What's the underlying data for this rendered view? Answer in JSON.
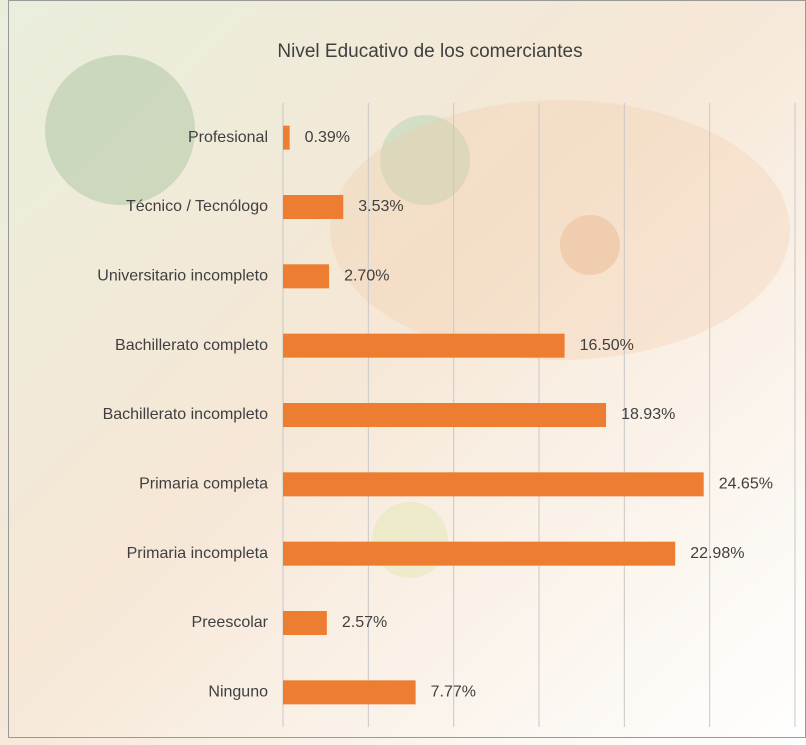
{
  "chart_data": {
    "type": "bar",
    "orientation": "horizontal",
    "title": "Nivel Educativo de los comerciantes",
    "categories": [
      "Profesional",
      "Técnico / Tecnólogo",
      "Universitario incompleto",
      "Bachillerato completo",
      "Bachillerato incompleto",
      "Primaria completa",
      "Primaria incompleta",
      "Preescolar",
      "Ninguno"
    ],
    "values": [
      0.39,
      3.53,
      2.7,
      16.5,
      18.93,
      24.65,
      22.98,
      2.57,
      7.77
    ],
    "value_labels": [
      "0.39%",
      "3.53%",
      "2.70%",
      "16.50%",
      "18.93%",
      "24.65%",
      "22.98%",
      "2.57%",
      "7.77%"
    ],
    "color": "#ed7d31",
    "xlim": [
      0,
      30
    ],
    "xticks": [
      0,
      5,
      10,
      15,
      20,
      25,
      30
    ],
    "grid": true
  }
}
